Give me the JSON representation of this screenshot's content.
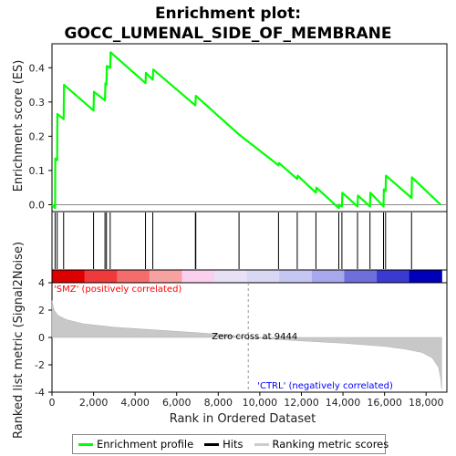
{
  "chart_data": {
    "type": "line",
    "title_line1": "Enrichment plot:",
    "title_line2": "GOCC_LUMENAL_SIDE_OF_MEMBRANE",
    "ylabel_top": "Enrichment score (ES)",
    "ylabel_bottom": "Ranked list metric (Signal2Noise)",
    "xlabel": "Rank in Ordered Dataset",
    "xlim": [
      0,
      19000
    ],
    "es_ylim": [
      -0.02,
      0.47
    ],
    "metric_ylim": [
      -4,
      4
    ],
    "x_ticks": [
      0,
      2000,
      4000,
      6000,
      8000,
      10000,
      12000,
      14000,
      16000,
      18000
    ],
    "x_tick_labels": [
      "0",
      "2,000",
      "4,000",
      "6,000",
      "8,000",
      "10,000",
      "12,000",
      "14,000",
      "16,000",
      "18,000"
    ],
    "es_ticks": [
      0.0,
      0.1,
      0.2,
      0.3,
      0.4
    ],
    "es_tick_labels": [
      "0.0",
      "0.1",
      "0.2",
      "0.3",
      "0.4"
    ],
    "metric_ticks": [
      -4,
      -2,
      0,
      2,
      4
    ],
    "metric_tick_labels": [
      "-4",
      "-2",
      "0",
      "2",
      "4"
    ],
    "series": [
      {
        "name": "Enrichment profile",
        "color": "#00ff00",
        "x": [
          0,
          150,
          160,
          250,
          260,
          560,
          580,
          2000,
          2020,
          2550,
          2570,
          2620,
          2640,
          2800,
          2820,
          4500,
          4520,
          4850,
          4870,
          6900,
          6920,
          9000,
          10900,
          10920,
          11800,
          11820,
          12700,
          12720,
          13800,
          13820,
          13950,
          13970,
          14700,
          14720,
          15300,
          15320,
          15950,
          15970,
          16050,
          16070,
          17300,
          17320,
          18700
        ],
        "y": [
          0.0,
          -0.01,
          0.135,
          0.13,
          0.265,
          0.25,
          0.35,
          0.275,
          0.33,
          0.305,
          0.355,
          0.35,
          0.405,
          0.4,
          0.445,
          0.355,
          0.385,
          0.365,
          0.395,
          0.29,
          0.318,
          0.205,
          0.115,
          0.122,
          0.075,
          0.085,
          0.035,
          0.05,
          -0.01,
          0.0,
          -0.005,
          0.035,
          -0.005,
          0.027,
          -0.005,
          0.035,
          -0.005,
          0.045,
          0.04,
          0.085,
          0.02,
          0.08,
          0.0
        ]
      }
    ],
    "hits": [
      150,
      250,
      560,
      2000,
      2550,
      2620,
      2800,
      4500,
      4850,
      6900,
      6920,
      9000,
      10900,
      11800,
      12700,
      13800,
      13950,
      14700,
      15300,
      15950,
      16050,
      17300
    ],
    "metric_curve": {
      "x": [
        0,
        100,
        300,
        700,
        1500,
        3000,
        5000,
        7000,
        8500,
        9444,
        10500,
        12000,
        14000,
        16000,
        17000,
        17800,
        18300,
        18600,
        18700,
        18750
      ],
      "y": [
        2.7,
        2.0,
        1.6,
        1.3,
        1.0,
        0.75,
        0.55,
        0.35,
        0.18,
        0.0,
        -0.12,
        -0.25,
        -0.42,
        -0.65,
        -0.85,
        -1.1,
        -1.5,
        -2.2,
        -3.0,
        -3.8
      ]
    },
    "zero_cross": 9444,
    "zero_cross_label": "Zero cross at 9444",
    "pos_label": "'SMZ' (positively correlated)",
    "neg_label": "'CTRL' (negatively correlated)",
    "pos_color": "#ff0000",
    "neg_color": "#0000ff",
    "heatmap_colors": [
      "#dd0000",
      "#ee3a3a",
      "#f36d6d",
      "#f7a2a2",
      "#fbd0ee",
      "#e8e0f5",
      "#d8d8f5",
      "#c6c6f2",
      "#a8a8ec",
      "#6f6fdc",
      "#3a3ad0",
      "#0000b8"
    ],
    "legend": [
      {
        "label": "Enrichment profile",
        "color": "#00ff00"
      },
      {
        "label": "Hits",
        "color": "#000000"
      },
      {
        "label": "Ranking metric scores",
        "color": "#cccccc"
      }
    ]
  }
}
